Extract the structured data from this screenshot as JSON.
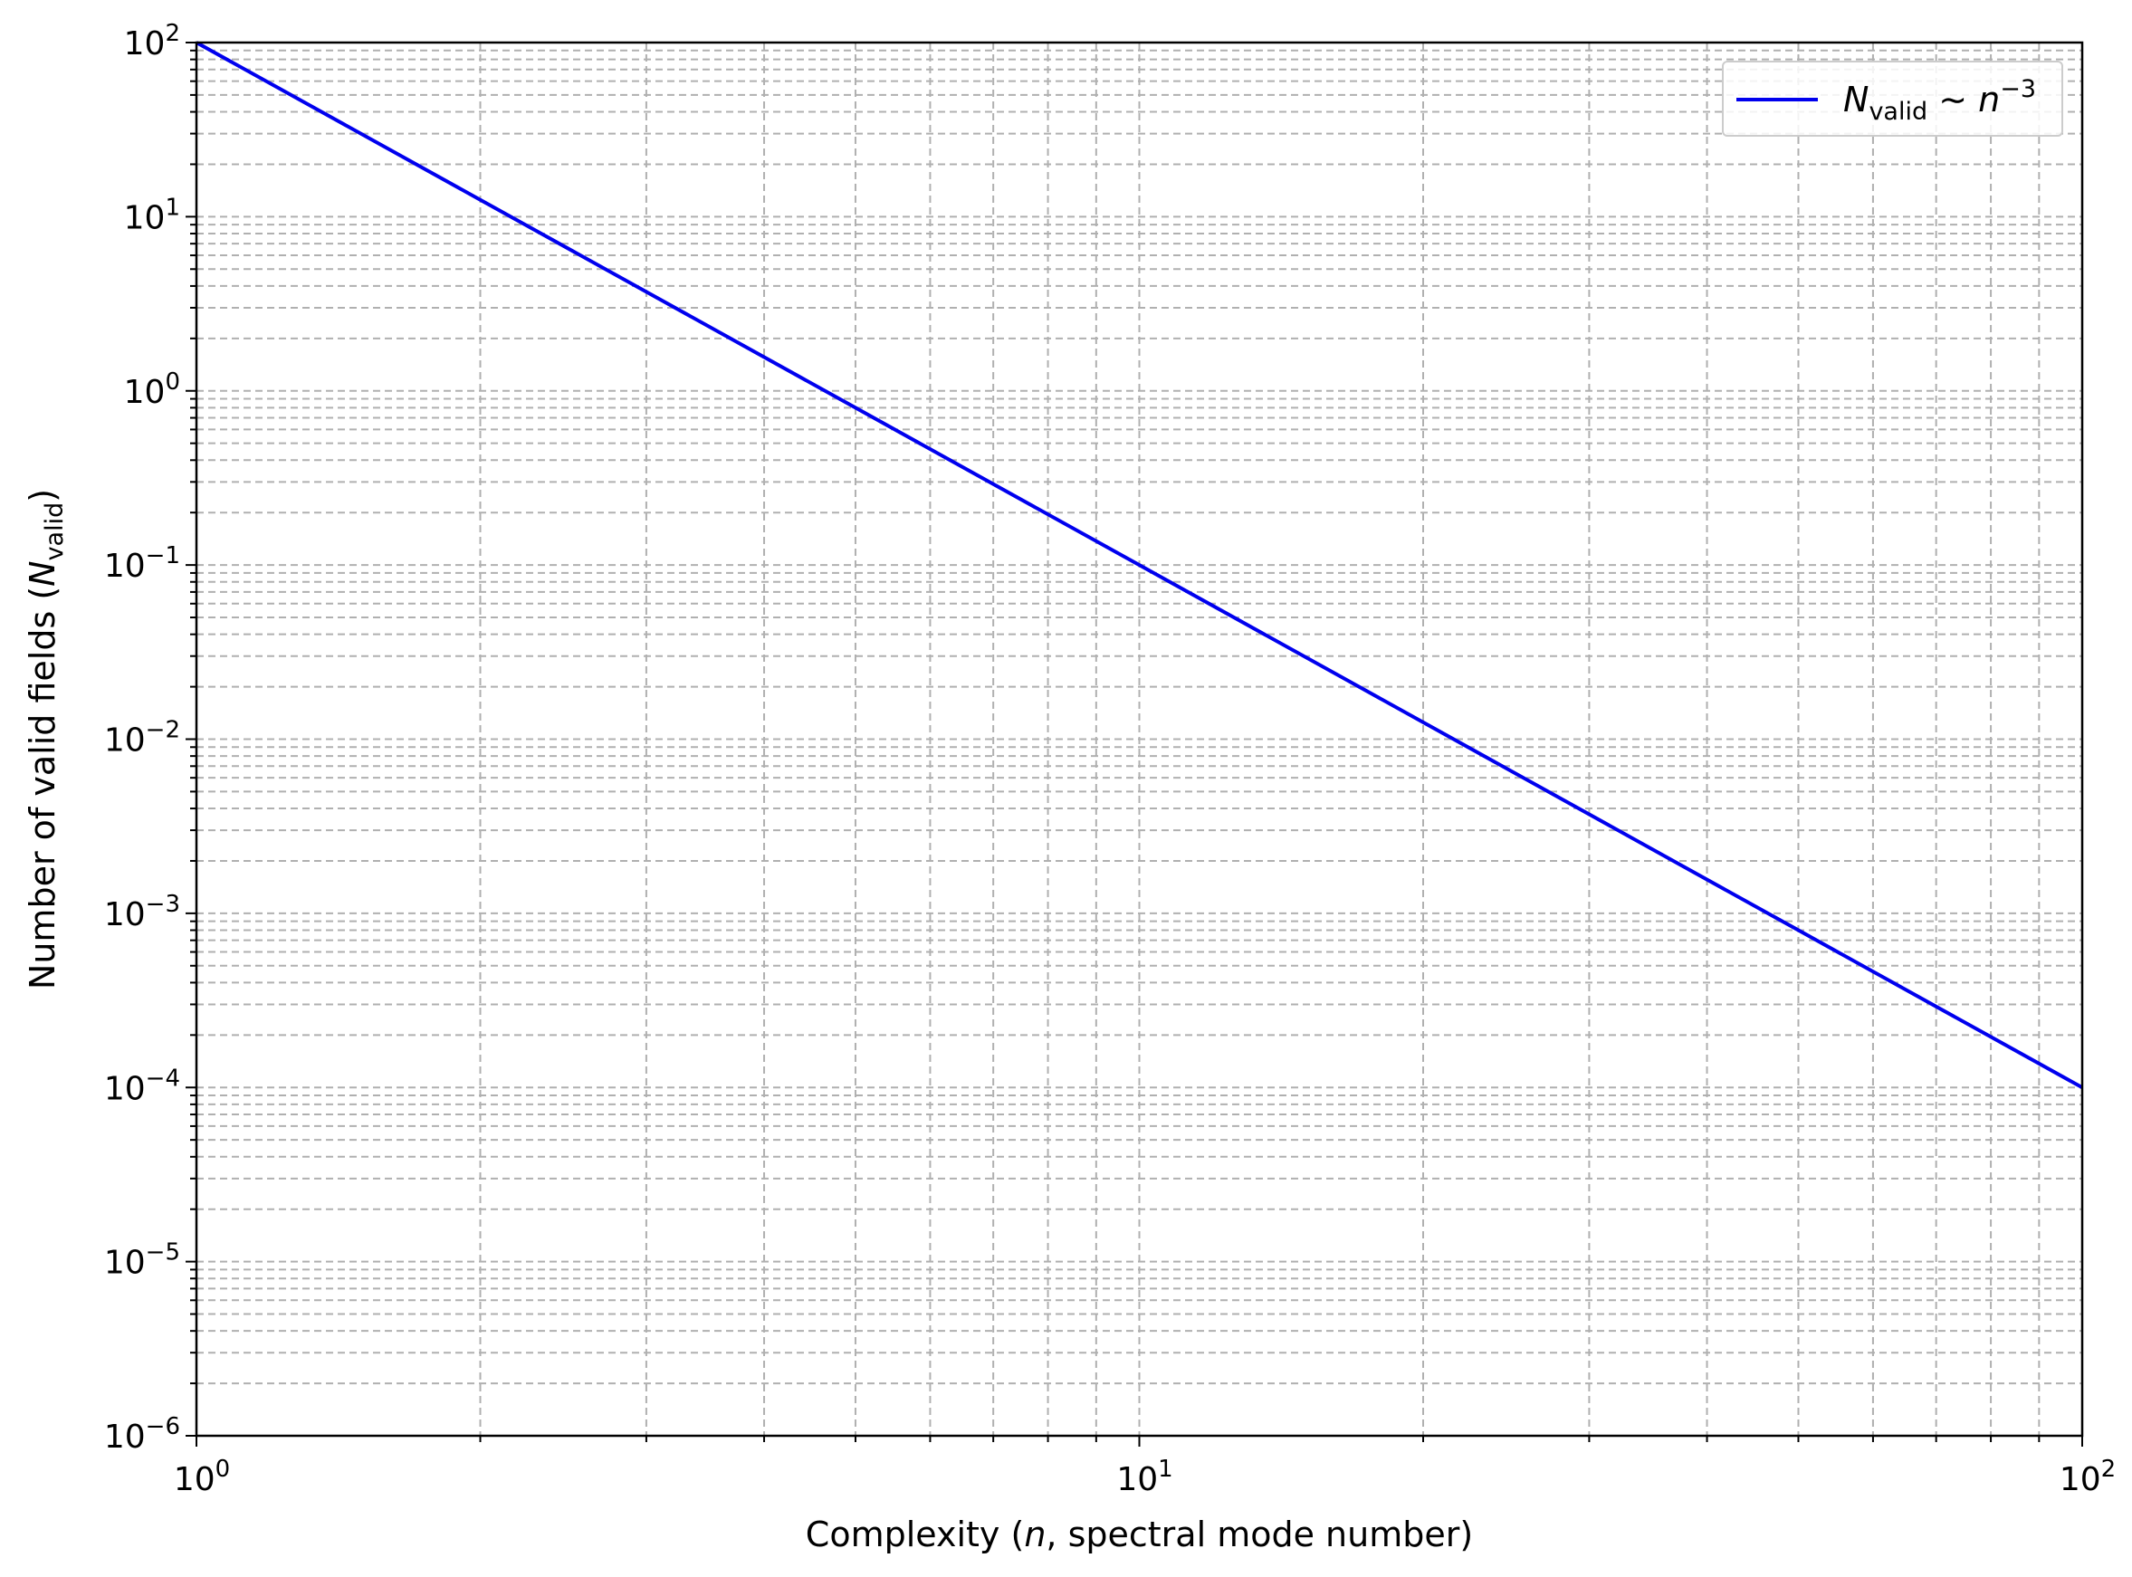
{
  "chart_data": {
    "type": "line",
    "x_scale": "log",
    "y_scale": "log",
    "xlim": [
      1,
      100
    ],
    "ylim": [
      1e-06,
      100
    ],
    "grid": "both (major and minor), dashed",
    "legend_position": "top-right",
    "xlabel": {
      "prefix": "Complexity (",
      "var": "n",
      "suffix": ", spectral mode number)"
    },
    "ylabel": {
      "prefix": "Number of valid fields (",
      "var": "N",
      "sub": "valid",
      "suffix": ")"
    },
    "x_ticks": [
      {
        "base": "10",
        "exp": "0",
        "value": 1
      },
      {
        "base": "10",
        "exp": "1",
        "value": 10
      },
      {
        "base": "10",
        "exp": "2",
        "value": 100
      }
    ],
    "y_ticks": [
      {
        "base": "10",
        "exp": "2",
        "value": 100
      },
      {
        "base": "10",
        "exp": "1",
        "value": 10
      },
      {
        "base": "10",
        "exp": "0",
        "value": 1
      },
      {
        "base": "10",
        "exp": "−1",
        "value": 0.1
      },
      {
        "base": "10",
        "exp": "−2",
        "value": 0.01
      },
      {
        "base": "10",
        "exp": "−3",
        "value": 0.001
      },
      {
        "base": "10",
        "exp": "−4",
        "value": 0.0001
      },
      {
        "base": "10",
        "exp": "−5",
        "value": 1e-05
      },
      {
        "base": "10",
        "exp": "−6",
        "value": 1e-06
      }
    ],
    "series": [
      {
        "legend": {
          "main": "N",
          "sub": "valid",
          "rel": " ∼ ",
          "var": "n",
          "exp": "−3"
        },
        "color": "#0000ee",
        "x": [
          1,
          2,
          5,
          10,
          20,
          50,
          100
        ],
        "y": [
          100,
          12.5,
          0.8,
          0.1,
          0.0125,
          0.0008,
          0.0001
        ]
      }
    ]
  }
}
